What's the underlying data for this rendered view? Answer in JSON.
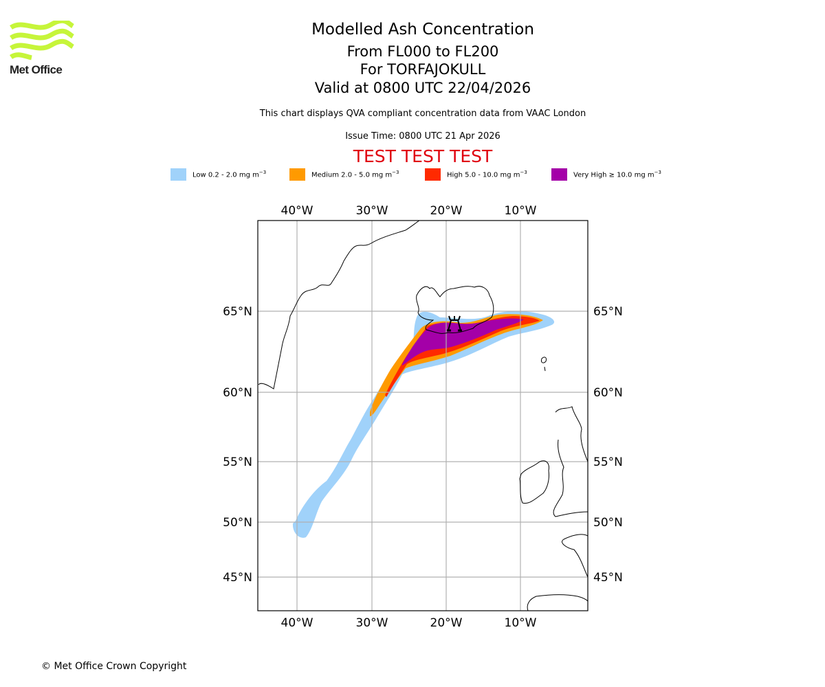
{
  "branding": {
    "logo_text": "Met Office",
    "logo_color": "#c6f53a"
  },
  "titles": {
    "main": "Modelled Ash Concentration",
    "levels": "From FL000 to FL200",
    "volcano": "For TORFAJOKULL",
    "valid": "Valid at 0800 UTC 22/04/2026"
  },
  "subtitle": "This chart displays QVA compliant concentration data from VAAC London",
  "issue_time": "Issue Time: 0800 UTC 21 Apr 2026",
  "test_banner": "TEST TEST TEST",
  "test_banner_color": "#e0000e",
  "legend": [
    {
      "label": "Low 0.2 - 2.0 mg m",
      "unit_exp": "−3",
      "color": "#a0d2fa"
    },
    {
      "label": "Medium 2.0 - 5.0 mg m",
      "unit_exp": "−3",
      "color": "#ff9a00"
    },
    {
      "label": "High 5.0 - 10.0 mg m",
      "unit_exp": "−3",
      "color": "#ff2a00"
    },
    {
      "label": "Very High  ≥  10.0 mg m",
      "unit_exp": "−3",
      "color": "#a400a8"
    }
  ],
  "chart_data": {
    "type": "heatmap",
    "title": "Modelled Ash Concentration",
    "projection": "lat-lon map",
    "lon_range": [
      -45,
      0
    ],
    "lat_range": [
      42,
      69
    ],
    "x_ticks": [
      "40°W",
      "30°W",
      "20°W",
      "10°W"
    ],
    "x_tick_values": [
      -40,
      -30,
      -20,
      -10
    ],
    "y_ticks": [
      "65°N",
      "60°N",
      "55°N",
      "50°N",
      "45°N"
    ],
    "y_tick_values": [
      65,
      60,
      55,
      50,
      45
    ],
    "grid": true,
    "volcano": {
      "name": "TORFAJOKULL",
      "lon": -19.1,
      "lat": 63.9,
      "icon": "volcano-icon"
    },
    "ash_contours": [
      {
        "level": "Low",
        "range_mg_m3": [
          0.2,
          2.0
        ],
        "color": "#a0d2fa"
      },
      {
        "level": "Medium",
        "range_mg_m3": [
          2.0,
          5.0
        ],
        "color": "#ff9a00"
      },
      {
        "level": "High",
        "range_mg_m3": [
          5.0,
          10.0
        ],
        "color": "#ff2a00"
      },
      {
        "level": "Very High",
        "range_mg_m3": [
          10.0,
          null
        ],
        "color": "#a400a8"
      }
    ],
    "plume_extent": {
      "low_from": {
        "lon": -40,
        "lat": 49
      },
      "low_to": {
        "lon": -5,
        "lat": 64.5
      },
      "very_high_core": "south Iceland, approx 26°W–9°W, 62°N–64.5°N"
    }
  },
  "footer": {
    "copyright": "© Met Office Crown Copyright"
  }
}
